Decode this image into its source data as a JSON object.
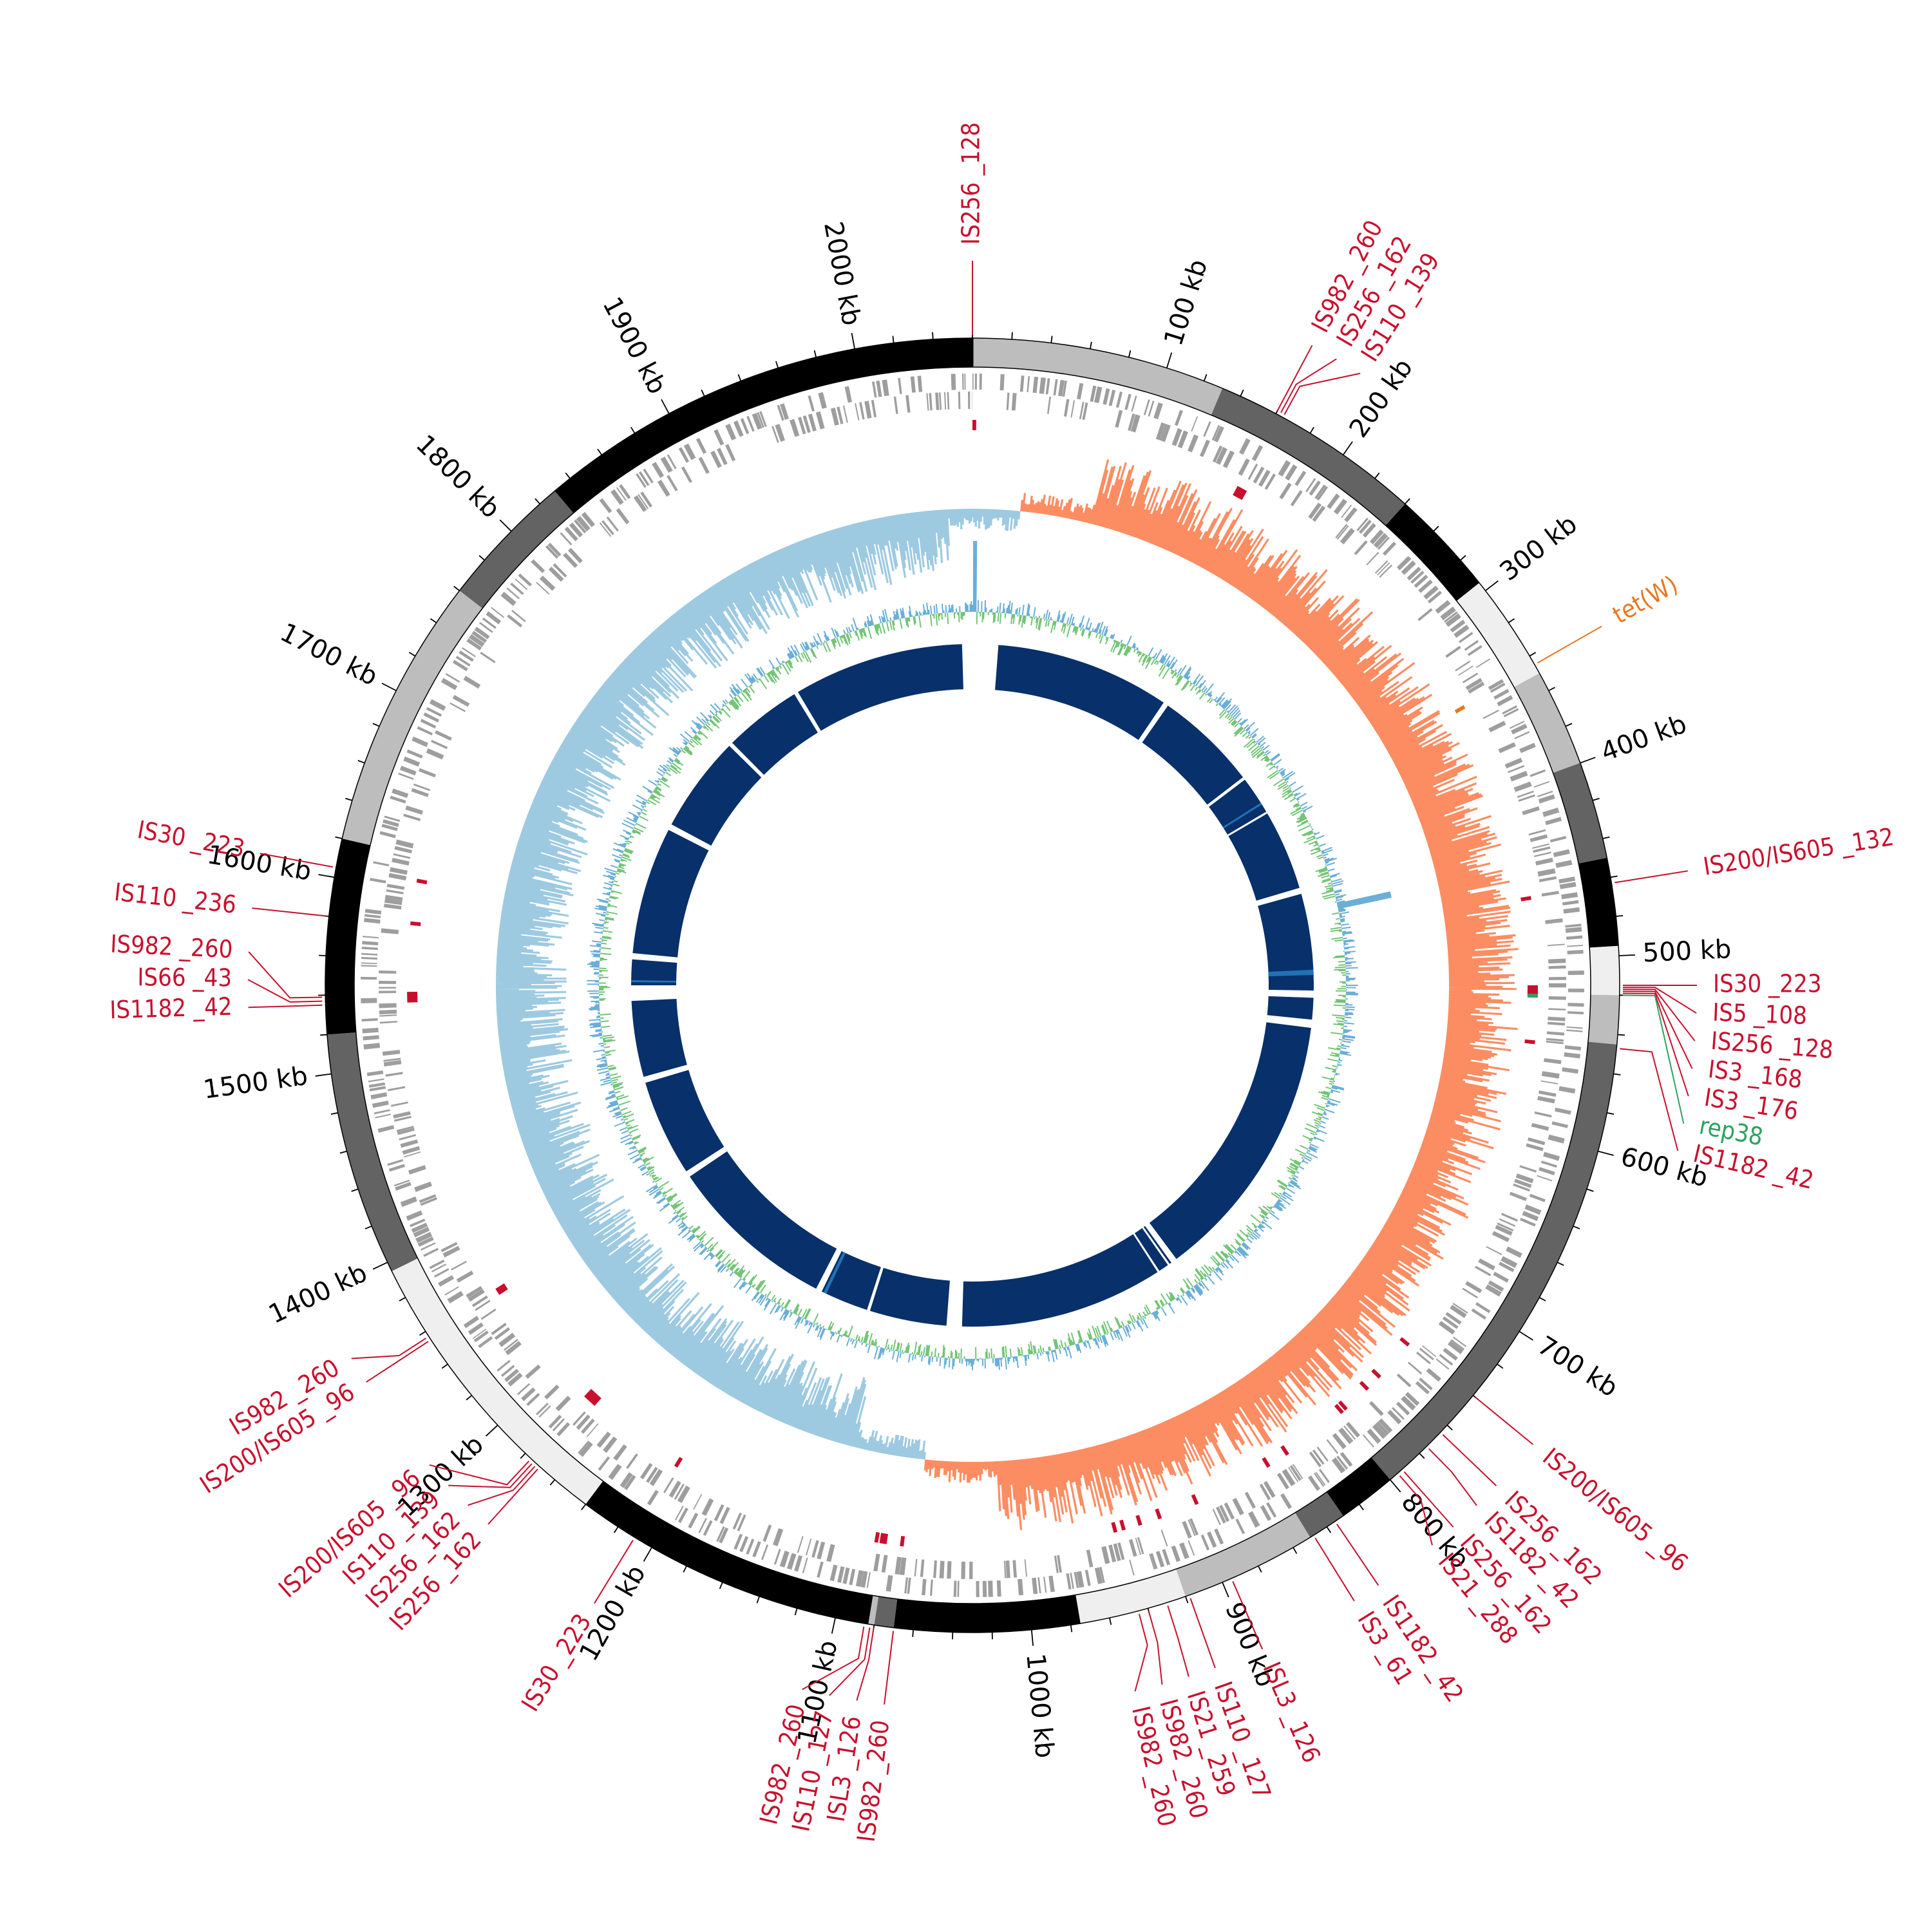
{
  "genome": {
    "length_kb": 2060,
    "contigs_kb": [
      0,
      130,
      240,
      295,
      350,
      400,
      450,
      495,
      520,
      545,
      800,
      830,
      850,
      920,
      975,
      1070,
      1080,
      1083,
      1240,
      1395,
      1520,
      1620,
      1760,
      1830,
      2060
    ],
    "contig_shades": [
      "#bdbdbd",
      "#636363",
      "#000000",
      "#efefef",
      "#bdbdbd",
      "#636363",
      "#000000",
      "#efefef",
      "#bdbdbd",
      "#636363",
      "#000000",
      "#636363",
      "#bdbdbd",
      "#efefef",
      "#000000",
      "#636363",
      "#bdbdbd",
      "#000000",
      "#efefef",
      "#636363",
      "#000000",
      "#bdbdbd",
      "#636363",
      "#000000",
      "#bdbdbd"
    ]
  },
  "ticks": {
    "labels": [
      {
        "kb": 100,
        "text": "100 kb"
      },
      {
        "kb": 200,
        "text": "200 kb"
      },
      {
        "kb": 300,
        "text": "300 kb"
      },
      {
        "kb": 400,
        "text": "400 kb"
      },
      {
        "kb": 500,
        "text": "500 kb"
      },
      {
        "kb": 600,
        "text": "600 kb"
      },
      {
        "kb": 700,
        "text": "700 kb"
      },
      {
        "kb": 800,
        "text": "800 kb"
      },
      {
        "kb": 900,
        "text": "900 kb"
      },
      {
        "kb": 1000,
        "text": "1000 kb"
      },
      {
        "kb": 1100,
        "text": "1100 kb"
      },
      {
        "kb": 1200,
        "text": "1200 kb"
      },
      {
        "kb": 1300,
        "text": "1300 kb"
      },
      {
        "kb": 1400,
        "text": "1400 kb"
      },
      {
        "kb": 1500,
        "text": "1500 kb"
      },
      {
        "kb": 1600,
        "text": "1600 kb"
      },
      {
        "kb": 1700,
        "text": "1700 kb"
      },
      {
        "kb": 1800,
        "text": "1800 kb"
      },
      {
        "kb": 1900,
        "text": "1900 kb"
      },
      {
        "kb": 2000,
        "text": "2000 kb"
      }
    ]
  },
  "annotations": [
    {
      "kb": 0,
      "text": "IS256 _128",
      "type": "IS"
    },
    {
      "kb": 160,
      "text": "IS982 _260",
      "type": "IS"
    },
    {
      "kb": 162,
      "text": "IS256 _162",
      "type": "IS"
    },
    {
      "kb": 164,
      "text": "IS110 _139",
      "type": "IS"
    },
    {
      "kb": 345,
      "text": "tet(W)",
      "type": "resistance"
    },
    {
      "kb": 463,
      "text": "IS200/IS605 _132",
      "type": "IS"
    },
    {
      "kb": 515,
      "text": "IS30 _223",
      "type": "IS"
    },
    {
      "kb": 516,
      "text": "IS5 _108",
      "type": "IS"
    },
    {
      "kb": 517,
      "text": "IS256 _128",
      "type": "IS"
    },
    {
      "kb": 518,
      "text": "IS3 _168",
      "type": "IS"
    },
    {
      "kb": 519,
      "text": "IS3 _176",
      "type": "IS"
    },
    {
      "kb": 520,
      "text": "rep38",
      "type": "plasmid"
    },
    {
      "kb": 547,
      "text": "IS1182 _42",
      "type": "IS"
    },
    {
      "kb": 740,
      "text": "IS200/IS605 _96",
      "type": "IS"
    },
    {
      "kb": 765,
      "text": "IS256 _162",
      "type": "IS"
    },
    {
      "kb": 775,
      "text": "IS1182 _42",
      "type": "IS"
    },
    {
      "kb": 792,
      "text": "IS256 _162",
      "type": "IS"
    },
    {
      "kb": 795,
      "text": "IS21 _288",
      "type": "IS"
    },
    {
      "kb": 835,
      "text": "IS1182 _42",
      "type": "IS"
    },
    {
      "kb": 848,
      "text": "IS3 _61",
      "type": "IS"
    },
    {
      "kb": 895,
      "text": "ISL3 _126",
      "type": "IS"
    },
    {
      "kb": 918,
      "text": "IS110 _127",
      "type": "IS"
    },
    {
      "kb": 930,
      "text": "IS21 _259",
      "type": "IS"
    },
    {
      "kb": 940,
      "text": "IS982 _260",
      "type": "IS"
    },
    {
      "kb": 945,
      "text": "IS982 _260",
      "type": "IS"
    },
    {
      "kb": 1070,
      "text": "IS982 _260",
      "type": "IS"
    },
    {
      "kb": 1080,
      "text": "ISL3 _126",
      "type": "IS"
    },
    {
      "kb": 1082,
      "text": "IS110 _127",
      "type": "IS"
    },
    {
      "kb": 1085,
      "text": "IS982 _260",
      "type": "IS"
    },
    {
      "kb": 1210,
      "text": "IS30 _223",
      "type": "IS"
    },
    {
      "kb": 1270,
      "text": "IS256 _162",
      "type": "IS"
    },
    {
      "kb": 1272,
      "text": "IS256 _162",
      "type": "IS"
    },
    {
      "kb": 1274,
      "text": "IS110 _139",
      "type": "IS"
    },
    {
      "kb": 1276,
      "text": "IS200/IS605 _96",
      "type": "IS"
    },
    {
      "kb": 1355,
      "text": "IS200/IS605 _96",
      "type": "IS"
    },
    {
      "kb": 1357,
      "text": "IS982 _260",
      "type": "IS"
    },
    {
      "kb": 1535,
      "text": "IS1182 _42",
      "type": "IS"
    },
    {
      "kb": 1537,
      "text": "IS66 _43",
      "type": "IS"
    },
    {
      "kb": 1539,
      "text": "IS982 _260",
      "type": "IS"
    },
    {
      "kb": 1580,
      "text": "IS110 _236",
      "type": "IS"
    },
    {
      "kb": 1605,
      "text": "IS30 _223",
      "type": "IS"
    }
  ],
  "colors": {
    "IS": "#c8102e",
    "resistance": "#e87722",
    "plasmid": "#2ca25f",
    "cds": "#9e9e9e",
    "gc_skew_positive": "#fc8d62",
    "gc_skew_negative": "#9ecae1",
    "gc_content_positive": "#6baed6",
    "gc_content_negative": "#74c476",
    "blast_hit": "#08306b",
    "blast_hit_light": "#2171b5"
  }
}
